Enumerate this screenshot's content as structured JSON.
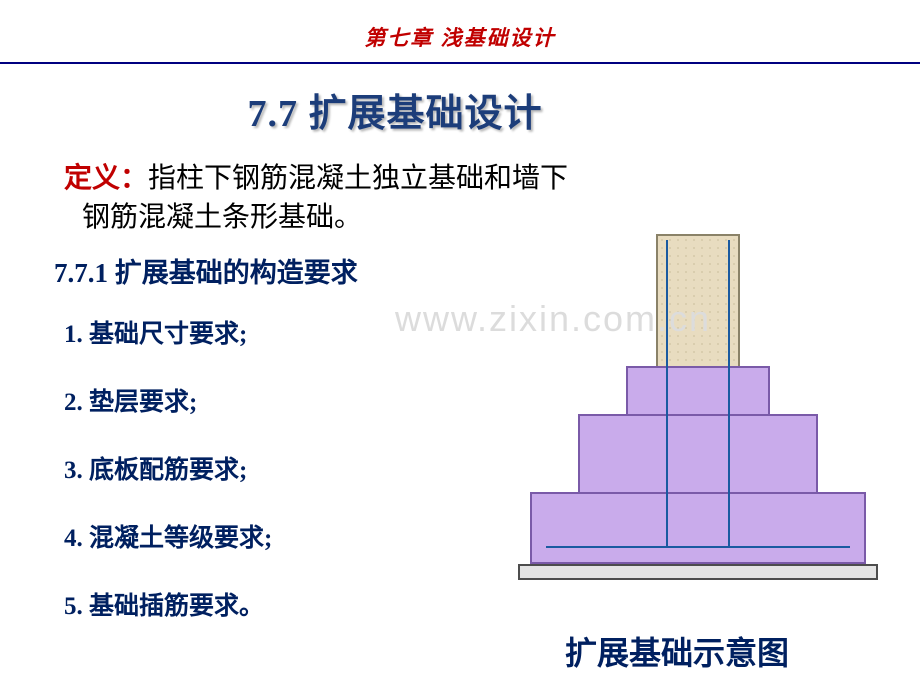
{
  "header": {
    "chapter_title": "第七章  浅基础设计"
  },
  "section": {
    "title": "7.7 扩展基础设计"
  },
  "definition": {
    "label": "定义：",
    "line1_rest": "指柱下钢筋混凝土独立基础和墙下",
    "line2": "钢筋混凝土条形基础。"
  },
  "subsection": {
    "title": "7.7.1 扩展基础的构造要求"
  },
  "list": {
    "items": [
      "1.  基础尺寸要求;",
      "2.  垫层要求;",
      "3.  底板配筋要求;",
      "4.  混凝土等级要求;",
      "5.  基础插筋要求。"
    ]
  },
  "diagram": {
    "caption": "扩展基础示意图",
    "colors": {
      "foundation_fill": "#c9abeb",
      "foundation_border": "#7a5aa8",
      "column_fill": "#e8dcc0",
      "column_border": "#8a8268",
      "cushion_fill": "#e4e4e4",
      "cushion_border": "#4d4d4d",
      "rebar": "#1a5aa0"
    }
  },
  "watermark": {
    "text": "www.zixin.com.cn"
  },
  "colors": {
    "chapter_red": "#c00000",
    "title_blue": "#1c3d7a",
    "text_blue": "#002060",
    "hr": "#000080",
    "watermark": "#dcdcdc"
  },
  "typography": {
    "chapter_fontsize": 21,
    "section_title_fontsize": 38,
    "body_fontsize": 28,
    "subsection_fontsize": 27,
    "list_fontsize": 25,
    "caption_fontsize": 32
  }
}
